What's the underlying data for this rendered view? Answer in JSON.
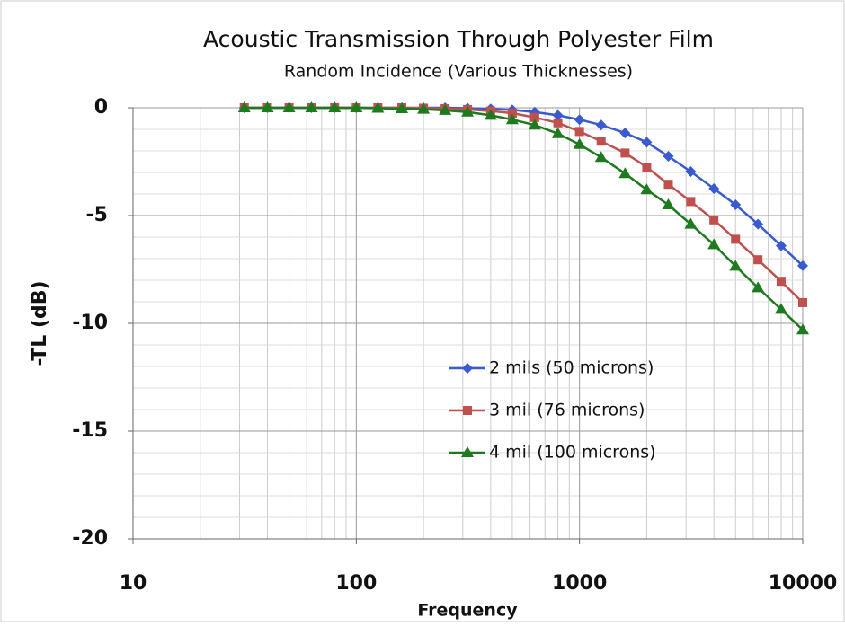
{
  "chart_data": {
    "type": "line",
    "title": "Acoustic Transmission Through Polyester Film",
    "subtitle": "Random Incidence (Various Thicknesses)",
    "x_label": "Frequency",
    "y_label": "-TL (dB)",
    "x_scale": "log",
    "grid": true,
    "minor_grid": true,
    "legend": "center-right",
    "xlim": [
      10,
      10000
    ],
    "xticks": [
      10,
      100,
      1000,
      10000
    ],
    "ylim": [
      -20,
      0
    ],
    "yticks": [
      -20,
      -15,
      -10,
      -5,
      0
    ],
    "x": [
      31.5,
      40,
      50,
      63,
      80,
      100,
      125,
      160,
      200,
      250,
      315,
      400,
      500,
      630,
      800,
      1000,
      1250,
      1600,
      2000,
      2500,
      3150,
      4000,
      5000,
      6300,
      8000,
      10000
    ],
    "series": [
      {
        "name": "2 mils (50 microns)",
        "color": "#3a5bd0",
        "marker": "diamond",
        "values": [
          0,
          0,
          0,
          0,
          0,
          0,
          0,
          0,
          0,
          0,
          -0.02,
          -0.05,
          -0.1,
          -0.2,
          -0.35,
          -0.55,
          -0.8,
          -1.17,
          -1.6,
          -2.25,
          -2.96,
          -3.75,
          -4.5,
          -5.4,
          -6.4,
          -7.33
        ]
      },
      {
        "name": "3 mil (76 microns)",
        "color": "#c0504d",
        "marker": "square",
        "values": [
          0,
          0,
          0,
          0,
          0,
          0,
          0,
          0,
          -0.02,
          -0.04,
          -0.08,
          -0.15,
          -0.25,
          -0.45,
          -0.7,
          -1.1,
          -1.55,
          -2.1,
          -2.75,
          -3.55,
          -4.35,
          -5.2,
          -6.1,
          -7.05,
          -8.05,
          -9.04
        ]
      },
      {
        "name": "4 mil (100 microns)",
        "color": "#1e7a1e",
        "marker": "triangle",
        "values": [
          0,
          0,
          0,
          0,
          0,
          0,
          -0.02,
          -0.04,
          -0.07,
          -0.12,
          -0.2,
          -0.35,
          -0.55,
          -0.8,
          -1.2,
          -1.7,
          -2.3,
          -3.05,
          -3.8,
          -4.5,
          -5.4,
          -6.35,
          -7.35,
          -8.35,
          -9.35,
          -10.3
        ]
      }
    ]
  }
}
